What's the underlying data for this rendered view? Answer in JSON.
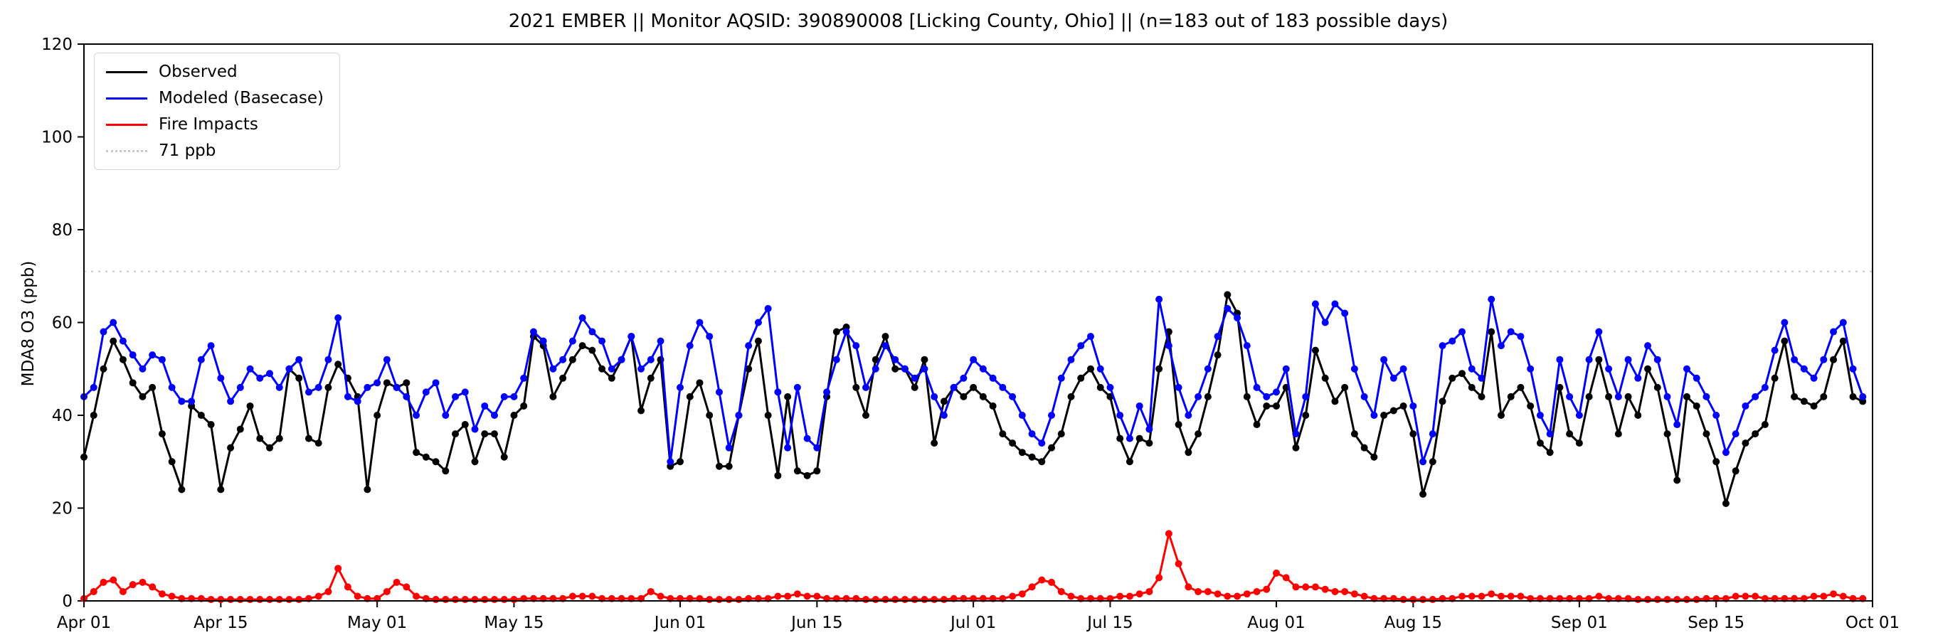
{
  "chart": {
    "title": "2021 EMBER || Monitor AQSID: 390890008 [Licking County, Ohio] || (n=183 out of 183 possible days)",
    "ylabel": "MDA8 O3 (ppb)"
  },
  "chart_data": {
    "type": "line",
    "title": "2021 EMBER || Monitor AQSID: 390890008 [Licking County, Ohio] || (n=183 out of 183 possible days)",
    "xlabel": "",
    "ylabel": "MDA8 O3 (ppb)",
    "ylim": [
      0,
      120
    ],
    "yticks": [
      0,
      20,
      40,
      60,
      80,
      100,
      120
    ],
    "x_range_days": [
      0,
      183
    ],
    "x_ticks": [
      {
        "label": "Apr 01",
        "day": 0
      },
      {
        "label": "Apr 15",
        "day": 14
      },
      {
        "label": "May 01",
        "day": 30
      },
      {
        "label": "May 15",
        "day": 44
      },
      {
        "label": "Jun 01",
        "day": 61
      },
      {
        "label": "Jun 15",
        "day": 75
      },
      {
        "label": "Jul 01",
        "day": 91
      },
      {
        "label": "Jul 15",
        "day": 105
      },
      {
        "label": "Aug 01",
        "day": 122
      },
      {
        "label": "Aug 15",
        "day": 136
      },
      {
        "label": "Sep 01",
        "day": 153
      },
      {
        "label": "Sep 15",
        "day": 167
      },
      {
        "label": "Oct 01",
        "day": 183
      }
    ],
    "grid": false,
    "legend_position": "upper left",
    "reference_line": {
      "value": 71,
      "label": "71 ppb",
      "color": "#d0d0d0",
      "style": "dotted"
    },
    "legend_entries": [
      {
        "label": "Observed",
        "color": "#000000",
        "style": "solid"
      },
      {
        "label": "Modeled (Basecase)",
        "color": "#0000ff",
        "style": "solid"
      },
      {
        "label": "Fire Impacts",
        "color": "#ff0000",
        "style": "solid"
      },
      {
        "label": "71 ppb",
        "color": "#c8c8c8",
        "style": "dotted"
      }
    ],
    "n_points": 183,
    "series": [
      {
        "name": "Observed",
        "color": "#000000",
        "values": [
          31,
          40,
          50,
          56,
          52,
          47,
          44,
          46,
          36,
          30,
          24,
          42,
          40,
          38,
          24,
          33,
          37,
          42,
          35,
          33,
          35,
          50,
          48,
          35,
          34,
          46,
          51,
          48,
          44,
          24,
          40,
          47,
          46,
          47,
          32,
          31,
          30,
          28,
          36,
          38,
          30,
          36,
          36,
          31,
          40,
          42,
          57,
          55,
          44,
          48,
          52,
          55,
          54,
          50,
          48,
          52,
          57,
          41,
          48,
          52,
          29,
          30,
          44,
          47,
          40,
          29,
          29,
          40,
          50,
          56,
          40,
          27,
          44,
          28,
          27,
          28,
          44,
          58,
          59,
          46,
          40,
          52,
          57,
          50,
          50,
          46,
          52,
          34,
          43,
          46,
          44,
          46,
          44,
          42,
          36,
          34,
          32,
          31,
          30,
          33,
          36,
          44,
          48,
          50,
          46,
          44,
          35,
          30,
          35,
          34,
          50,
          58,
          38,
          32,
          36,
          44,
          53,
          66,
          62,
          44,
          38,
          42,
          42,
          46,
          33,
          40,
          54,
          48,
          43,
          46,
          36,
          33,
          31,
          40,
          41,
          42,
          36,
          23,
          30,
          43,
          48,
          49,
          46,
          44,
          58,
          40,
          44,
          46,
          42,
          34,
          32,
          46,
          36,
          34,
          44,
          52,
          44,
          36,
          44,
          40,
          50,
          46,
          36,
          26,
          44,
          42,
          36,
          30,
          21,
          28,
          34,
          36,
          38,
          48,
          56,
          44,
          43,
          42,
          44,
          52,
          56,
          44,
          43
        ]
      },
      {
        "name": "Modeled (Basecase)",
        "color": "#0000ff",
        "values": [
          44,
          46,
          58,
          60,
          56,
          53,
          50,
          53,
          52,
          46,
          43,
          43,
          52,
          55,
          48,
          43,
          46,
          50,
          48,
          49,
          46,
          50,
          52,
          45,
          46,
          52,
          61,
          44,
          43,
          46,
          47,
          52,
          46,
          44,
          40,
          45,
          47,
          40,
          44,
          45,
          37,
          42,
          40,
          44,
          44,
          48,
          58,
          56,
          50,
          52,
          56,
          61,
          58,
          56,
          50,
          52,
          57,
          50,
          52,
          56,
          30,
          46,
          55,
          60,
          57,
          45,
          33,
          40,
          55,
          60,
          63,
          45,
          33,
          46,
          35,
          33,
          45,
          52,
          58,
          55,
          46,
          50,
          55,
          52,
          50,
          48,
          50,
          44,
          40,
          46,
          48,
          52,
          50,
          48,
          46,
          44,
          40,
          36,
          34,
          40,
          48,
          52,
          55,
          57,
          50,
          46,
          40,
          35,
          42,
          37,
          65,
          55,
          46,
          40,
          44,
          50,
          57,
          63,
          61,
          55,
          46,
          44,
          45,
          50,
          36,
          44,
          64,
          60,
          64,
          62,
          50,
          44,
          40,
          52,
          48,
          50,
          42,
          30,
          36,
          55,
          56,
          58,
          50,
          48,
          65,
          55,
          58,
          57,
          50,
          40,
          36,
          52,
          44,
          40,
          52,
          58,
          50,
          44,
          52,
          48,
          55,
          52,
          44,
          38,
          50,
          48,
          44,
          40,
          32,
          36,
          42,
          44,
          46,
          54,
          60,
          52,
          50,
          48,
          52,
          58,
          60,
          50,
          44
        ]
      },
      {
        "name": "Fire Impacts",
        "color": "#ff0000",
        "values": [
          0.5,
          2,
          4,
          4.5,
          2,
          3.5,
          4,
          3,
          1.5,
          1,
          0.5,
          0.5,
          0.5,
          0.3,
          0.3,
          0.3,
          0.3,
          0.3,
          0.3,
          0.3,
          0.3,
          0.3,
          0.3,
          0.5,
          1,
          2,
          7,
          3,
          1,
          0.5,
          0.5,
          2,
          4,
          3,
          1,
          0.5,
          0.3,
          0.3,
          0.3,
          0.3,
          0.3,
          0.3,
          0.3,
          0.3,
          0.3,
          0.5,
          0.5,
          0.5,
          0.5,
          0.5,
          1,
          1,
          1,
          0.5,
          0.5,
          0.5,
          0.5,
          0.5,
          2,
          1,
          0.5,
          0.5,
          0.5,
          0.5,
          0.3,
          0.3,
          0.3,
          0.3,
          0.5,
          0.5,
          0.5,
          1,
          1,
          1.5,
          1,
          1,
          0.5,
          0.5,
          0.5,
          0.5,
          0.3,
          0.3,
          0.3,
          0.3,
          0.3,
          0.3,
          0.3,
          0.3,
          0.3,
          0.5,
          0.5,
          0.5,
          0.5,
          0.5,
          0.5,
          1,
          1.5,
          3,
          4.5,
          4,
          2,
          1,
          0.5,
          0.5,
          0.5,
          0.5,
          1,
          1,
          1.5,
          2,
          5,
          14.5,
          8,
          3,
          2,
          2,
          1.5,
          1,
          1,
          1.5,
          2,
          2.5,
          6,
          5,
          3,
          3,
          3,
          2.5,
          2,
          2,
          1.5,
          1,
          0.5,
          0.5,
          0.5,
          0.3,
          0.3,
          0.3,
          0.3,
          0.5,
          0.5,
          1,
          1,
          1,
          1.5,
          1,
          1,
          1,
          0.5,
          0.5,
          0.5,
          0.5,
          0.5,
          0.5,
          0.5,
          1,
          0.5,
          0.5,
          0.5,
          0.3,
          0.3,
          0.3,
          0.3,
          0.3,
          0.3,
          0.3,
          0.5,
          0.5,
          0.5,
          1,
          1,
          1,
          0.5,
          0.5,
          0.5,
          0.5,
          0.5,
          1,
          1,
          1.5,
          1,
          0.5,
          0.5
        ]
      }
    ]
  }
}
